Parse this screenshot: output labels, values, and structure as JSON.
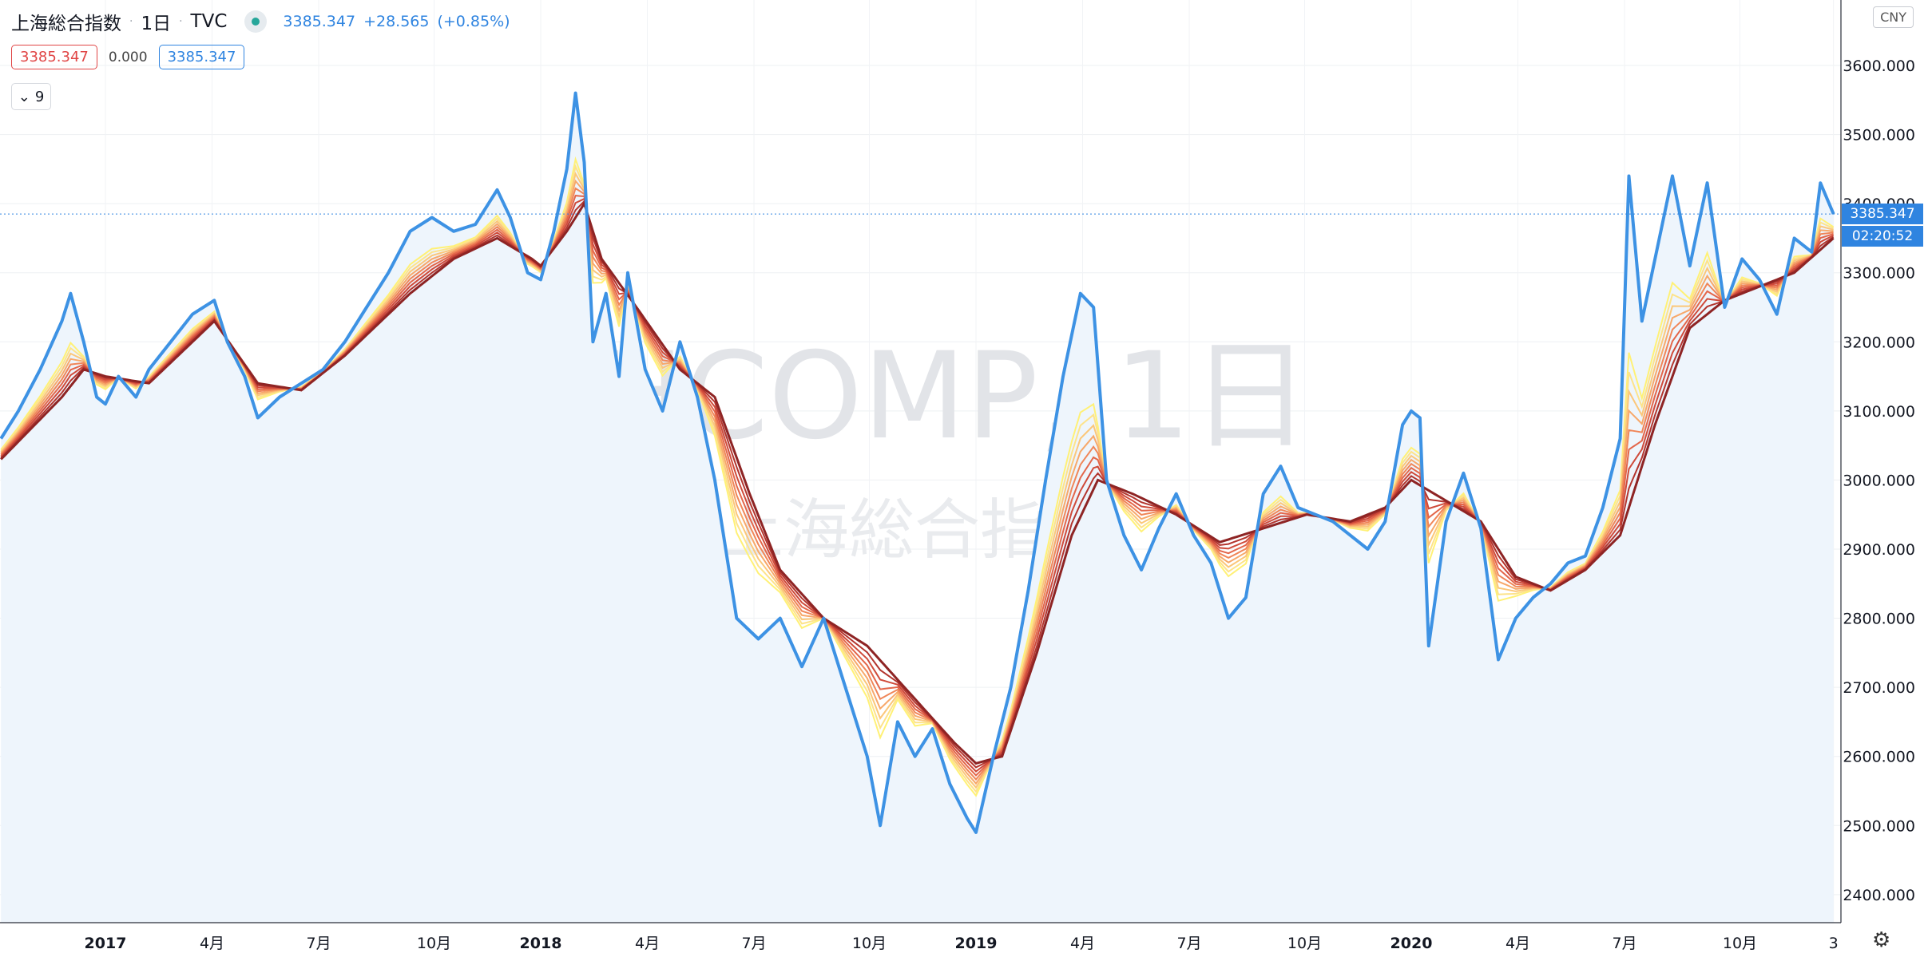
{
  "header": {
    "symbol": "上海総合指数",
    "interval": "1日",
    "exchange": "TVC",
    "last": "3385.347",
    "change": "+28.565",
    "change_pct": "(+0.85%)"
  },
  "values_row": {
    "ma_value": "3385.347",
    "offset": "0.000",
    "price": "3385.347"
  },
  "collapse_label": "9",
  "currency": "CNY",
  "price_label": "3385.347",
  "countdown_label": "02:20:52",
  "watermark": {
    "line1": "SHCOMP, 1日",
    "line2": "上海総合指数"
  },
  "colors": {
    "price_line": "#3d92e4",
    "area_fill": "#eef5fc",
    "ribbon": [
      "#fff176",
      "#fde38a",
      "#fbc77a",
      "#f7a86a",
      "#f08658",
      "#e3664a",
      "#cf4a3a",
      "#b3352e",
      "#8e2424"
    ],
    "label_bg": "#2f84e0"
  },
  "chart_data": {
    "type": "line",
    "title": "",
    "xlabel": "",
    "ylabel": "",
    "ylim": [
      2350,
      3650
    ],
    "yticks": [
      "3600.000",
      "3500.000",
      "3400.000",
      "3300.000",
      "3200.000",
      "3100.000",
      "3000.000",
      "2900.000",
      "2800.000",
      "2700.000",
      "2600.000",
      "2500.000",
      "2400.000"
    ],
    "yticks_values": [
      3600,
      3500,
      3400,
      3300,
      3200,
      3100,
      3000,
      2900,
      2800,
      2700,
      2600,
      2500,
      2400
    ],
    "xticks": [
      {
        "t": 0.0,
        "label": "2017",
        "bold": true
      },
      {
        "t": 0.245,
        "label": "4月",
        "bold": false
      },
      {
        "t": 0.49,
        "label": "7月",
        "bold": false
      },
      {
        "t": 0.755,
        "label": "10月",
        "bold": false
      },
      {
        "t": 1.0,
        "label": "2018",
        "bold": true
      },
      {
        "t": 1.245,
        "label": "4月",
        "bold": false
      },
      {
        "t": 1.49,
        "label": "7月",
        "bold": false
      },
      {
        "t": 1.755,
        "label": "10月",
        "bold": false
      },
      {
        "t": 2.0,
        "label": "2019",
        "bold": true
      },
      {
        "t": 2.245,
        "label": "4月",
        "bold": false
      },
      {
        "t": 2.49,
        "label": "7月",
        "bold": false
      },
      {
        "t": 2.755,
        "label": "10月",
        "bold": false
      },
      {
        "t": 3.0,
        "label": "2020",
        "bold": true
      },
      {
        "t": 3.245,
        "label": "4月",
        "bold": false
      },
      {
        "t": 3.49,
        "label": "7月",
        "bold": false
      },
      {
        "t": 3.755,
        "label": "10月",
        "bold": false
      },
      {
        "t": 3.97,
        "label": "3",
        "bold": false
      }
    ],
    "series": [
      {
        "values": [
          [
            -0.24,
            3060
          ],
          [
            -0.2,
            3100
          ],
          [
            -0.15,
            3160
          ],
          [
            -0.1,
            3230
          ],
          [
            -0.08,
            3270
          ],
          [
            -0.05,
            3200
          ],
          [
            -0.02,
            3120
          ],
          [
            0.0,
            3110
          ],
          [
            0.03,
            3150
          ],
          [
            0.07,
            3120
          ],
          [
            0.1,
            3160
          ],
          [
            0.15,
            3200
          ],
          [
            0.2,
            3240
          ],
          [
            0.25,
            3260
          ],
          [
            0.28,
            3200
          ],
          [
            0.32,
            3150
          ],
          [
            0.35,
            3090
          ],
          [
            0.4,
            3120
          ],
          [
            0.45,
            3140
          ],
          [
            0.5,
            3160
          ],
          [
            0.55,
            3200
          ],
          [
            0.6,
            3250
          ],
          [
            0.65,
            3300
          ],
          [
            0.7,
            3360
          ],
          [
            0.75,
            3380
          ],
          [
            0.8,
            3360
          ],
          [
            0.85,
            3370
          ],
          [
            0.9,
            3420
          ],
          [
            0.93,
            3380
          ],
          [
            0.97,
            3300
          ],
          [
            1.0,
            3290
          ],
          [
            1.03,
            3360
          ],
          [
            1.06,
            3450
          ],
          [
            1.08,
            3560
          ],
          [
            1.1,
            3460
          ],
          [
            1.12,
            3200
          ],
          [
            1.15,
            3270
          ],
          [
            1.18,
            3150
          ],
          [
            1.2,
            3300
          ],
          [
            1.24,
            3160
          ],
          [
            1.28,
            3100
          ],
          [
            1.32,
            3200
          ],
          [
            1.36,
            3120
          ],
          [
            1.4,
            3000
          ],
          [
            1.45,
            2800
          ],
          [
            1.5,
            2770
          ],
          [
            1.55,
            2800
          ],
          [
            1.6,
            2730
          ],
          [
            1.65,
            2800
          ],
          [
            1.7,
            2700
          ],
          [
            1.75,
            2600
          ],
          [
            1.78,
            2500
          ],
          [
            1.82,
            2650
          ],
          [
            1.86,
            2600
          ],
          [
            1.9,
            2640
          ],
          [
            1.94,
            2560
          ],
          [
            1.98,
            2510
          ],
          [
            2.0,
            2490
          ],
          [
            2.04,
            2600
          ],
          [
            2.08,
            2700
          ],
          [
            2.12,
            2840
          ],
          [
            2.16,
            3000
          ],
          [
            2.2,
            3150
          ],
          [
            2.24,
            3270
          ],
          [
            2.27,
            3250
          ],
          [
            2.3,
            3000
          ],
          [
            2.34,
            2920
          ],
          [
            2.38,
            2870
          ],
          [
            2.42,
            2930
          ],
          [
            2.46,
            2980
          ],
          [
            2.5,
            2920
          ],
          [
            2.54,
            2880
          ],
          [
            2.58,
            2800
          ],
          [
            2.62,
            2830
          ],
          [
            2.66,
            2980
          ],
          [
            2.7,
            3020
          ],
          [
            2.74,
            2960
          ],
          [
            2.78,
            2950
          ],
          [
            2.82,
            2940
          ],
          [
            2.86,
            2920
          ],
          [
            2.9,
            2900
          ],
          [
            2.94,
            2940
          ],
          [
            2.98,
            3080
          ],
          [
            3.0,
            3100
          ],
          [
            3.02,
            3090
          ],
          [
            3.04,
            2760
          ],
          [
            3.08,
            2940
          ],
          [
            3.12,
            3010
          ],
          [
            3.16,
            2930
          ],
          [
            3.2,
            2740
          ],
          [
            3.24,
            2800
          ],
          [
            3.28,
            2830
          ],
          [
            3.32,
            2850
          ],
          [
            3.36,
            2880
          ],
          [
            3.4,
            2890
          ],
          [
            3.44,
            2960
          ],
          [
            3.48,
            3060
          ],
          [
            3.5,
            3440
          ],
          [
            3.53,
            3230
          ],
          [
            3.56,
            3320
          ],
          [
            3.6,
            3440
          ],
          [
            3.64,
            3310
          ],
          [
            3.68,
            3430
          ],
          [
            3.72,
            3250
          ],
          [
            3.76,
            3320
          ],
          [
            3.8,
            3290
          ],
          [
            3.84,
            3240
          ],
          [
            3.88,
            3350
          ],
          [
            3.92,
            3330
          ],
          [
            3.94,
            3430
          ],
          [
            3.97,
            3385
          ]
        ]
      },
      {
        "values": [
          [
            -0.24,
            3030
          ],
          [
            -0.1,
            3120
          ],
          [
            -0.05,
            3160
          ],
          [
            0.0,
            3150
          ],
          [
            0.1,
            3140
          ],
          [
            0.25,
            3230
          ],
          [
            0.35,
            3140
          ],
          [
            0.45,
            3130
          ],
          [
            0.55,
            3180
          ],
          [
            0.7,
            3270
          ],
          [
            0.8,
            3320
          ],
          [
            0.9,
            3350
          ],
          [
            0.98,
            3320
          ],
          [
            1.0,
            3310
          ],
          [
            1.06,
            3360
          ],
          [
            1.1,
            3400
          ],
          [
            1.14,
            3320
          ],
          [
            1.22,
            3250
          ],
          [
            1.32,
            3160
          ],
          [
            1.4,
            3120
          ],
          [
            1.48,
            2980
          ],
          [
            1.55,
            2870
          ],
          [
            1.65,
            2800
          ],
          [
            1.75,
            2760
          ],
          [
            1.85,
            2690
          ],
          [
            1.95,
            2620
          ],
          [
            2.0,
            2590
          ],
          [
            2.06,
            2600
          ],
          [
            2.14,
            2750
          ],
          [
            2.22,
            2920
          ],
          [
            2.28,
            3000
          ],
          [
            2.36,
            2980
          ],
          [
            2.46,
            2950
          ],
          [
            2.56,
            2910
          ],
          [
            2.66,
            2930
          ],
          [
            2.76,
            2950
          ],
          [
            2.86,
            2940
          ],
          [
            2.94,
            2960
          ],
          [
            3.0,
            3000
          ],
          [
            3.08,
            2970
          ],
          [
            3.16,
            2940
          ],
          [
            3.24,
            2860
          ],
          [
            3.32,
            2840
          ],
          [
            3.4,
            2870
          ],
          [
            3.48,
            2920
          ],
          [
            3.56,
            3080
          ],
          [
            3.64,
            3220
          ],
          [
            3.72,
            3260
          ],
          [
            3.8,
            3280
          ],
          [
            3.88,
            3300
          ],
          [
            3.97,
            3350
          ]
        ]
      }
    ]
  }
}
